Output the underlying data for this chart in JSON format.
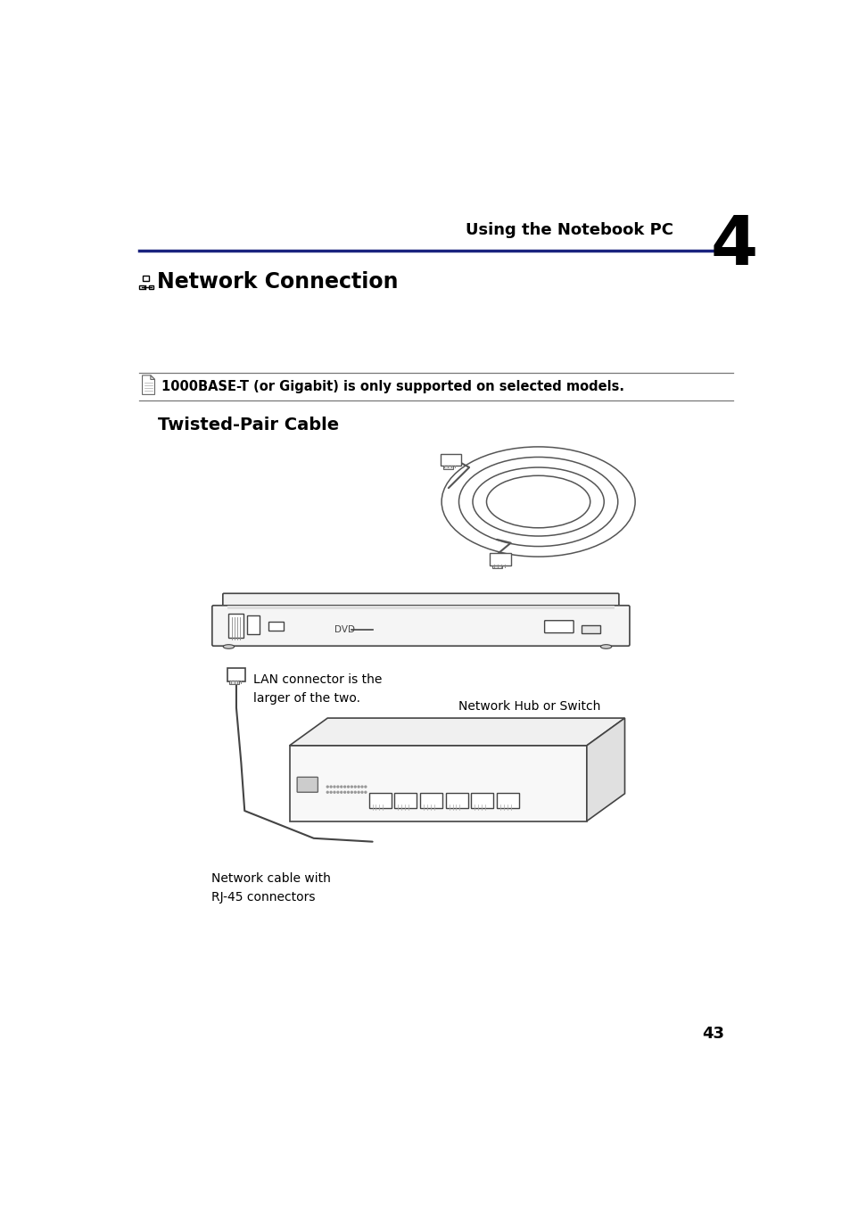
{
  "bg_color": "#ffffff",
  "header_text": "Using the Notebook PC",
  "header_number": "4",
  "header_line_color": "#1a237e",
  "note_text": "1000BASE-T (or Gigabit) is only supported on selected models.",
  "subsection_title": "Twisted-Pair Cable",
  "label_lan": "LAN connector is the\nlarger of the two.",
  "label_network_hub": "Network Hub or Switch",
  "label_cable": "Network cable with\nRJ-45 connectors",
  "page_number": "43",
  "text_color": "#000000",
  "header_line_color2": "#1a237e",
  "section_icon": "≡",
  "section_title_text": "Network Connection",
  "note_line_color": "#888888",
  "draw_color": "#444444"
}
